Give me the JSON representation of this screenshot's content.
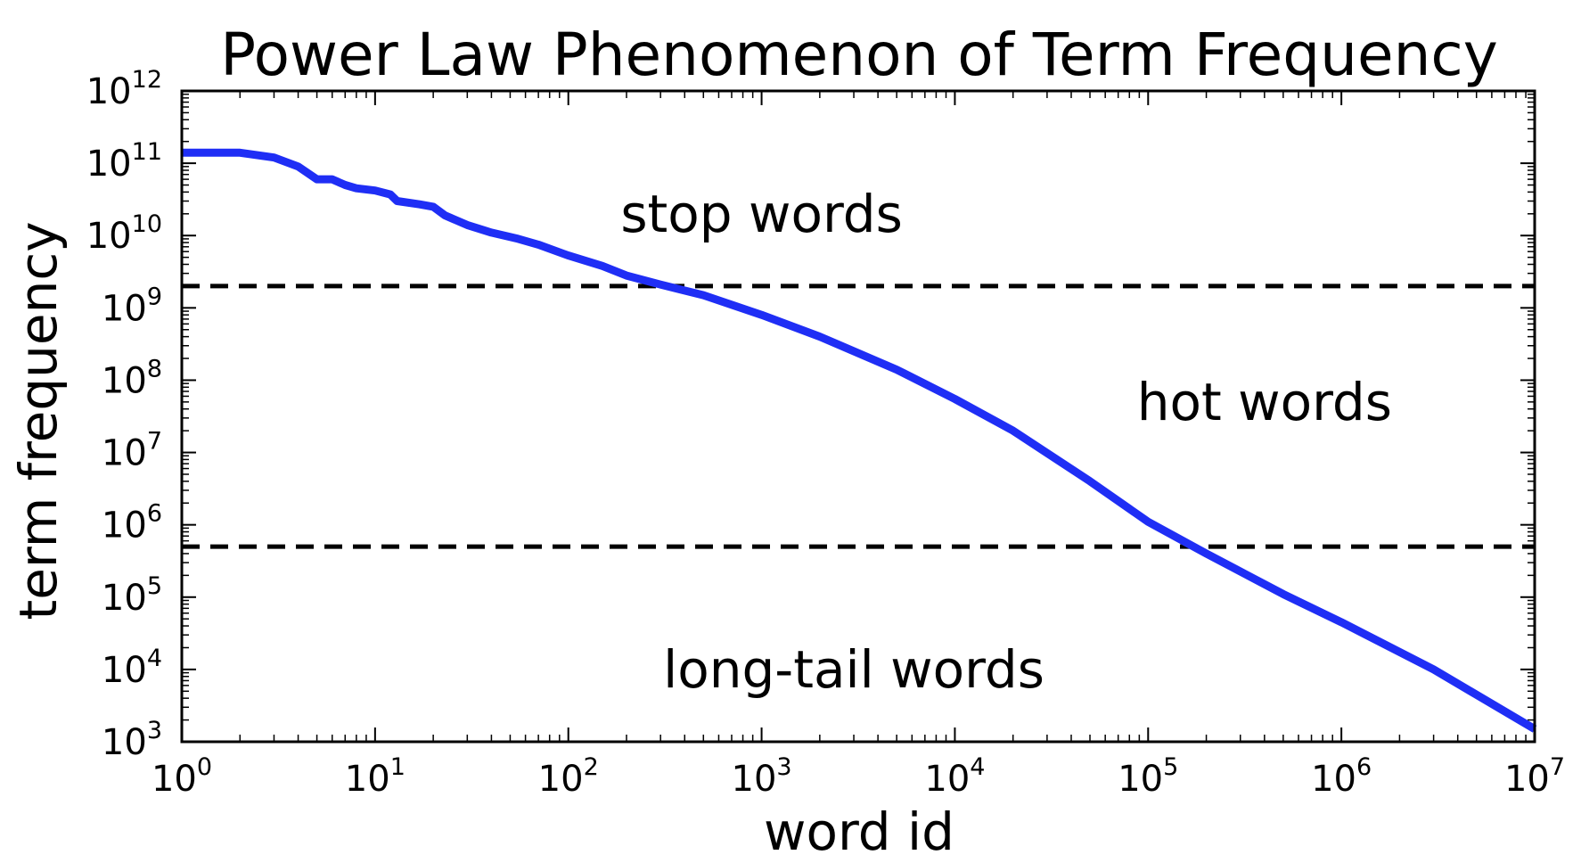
{
  "chart_data": {
    "type": "line",
    "title": "Power Law Phenomenon of Term Frequency",
    "xlabel": "word id",
    "ylabel": "term frequency",
    "xscale": "log",
    "yscale": "log",
    "xlim": [
      1,
      10000000
    ],
    "ylim": [
      1000,
      1000000000000
    ],
    "grid": false,
    "x_ticks": [
      {
        "base": "10",
        "exp": "0"
      },
      {
        "base": "10",
        "exp": "1"
      },
      {
        "base": "10",
        "exp": "2"
      },
      {
        "base": "10",
        "exp": "3"
      },
      {
        "base": "10",
        "exp": "4"
      },
      {
        "base": "10",
        "exp": "5"
      },
      {
        "base": "10",
        "exp": "6"
      },
      {
        "base": "10",
        "exp": "7"
      }
    ],
    "y_ticks": [
      {
        "base": "10",
        "exp": "3"
      },
      {
        "base": "10",
        "exp": "4"
      },
      {
        "base": "10",
        "exp": "5"
      },
      {
        "base": "10",
        "exp": "6"
      },
      {
        "base": "10",
        "exp": "7"
      },
      {
        "base": "10",
        "exp": "8"
      },
      {
        "base": "10",
        "exp": "9"
      },
      {
        "base": "10",
        "exp": "10"
      },
      {
        "base": "10",
        "exp": "11"
      },
      {
        "base": "10",
        "exp": "12"
      }
    ],
    "series": [
      {
        "color": "#1f2ef5",
        "points": [
          [
            1,
            140000000000
          ],
          [
            2,
            140000000000
          ],
          [
            3,
            120000000000
          ],
          [
            4,
            90000000000
          ],
          [
            5,
            60000000000
          ],
          [
            6,
            60000000000
          ],
          [
            7,
            50000000000
          ],
          [
            8,
            45000000000
          ],
          [
            10,
            42000000000
          ],
          [
            12,
            37000000000
          ],
          [
            13,
            30000000000
          ],
          [
            17,
            27000000000
          ],
          [
            20,
            25000000000
          ],
          [
            23,
            19000000000
          ],
          [
            30,
            14000000000
          ],
          [
            40,
            11000000000
          ],
          [
            55,
            9000000000
          ],
          [
            70,
            7500000000
          ],
          [
            100,
            5300000000
          ],
          [
            150,
            3800000000
          ],
          [
            200,
            2800000000
          ],
          [
            300,
            2100000000
          ],
          [
            500,
            1500000000
          ],
          [
            1000,
            800000000
          ],
          [
            2000,
            400000000
          ],
          [
            5000,
            140000000
          ],
          [
            10000,
            55000000
          ],
          [
            20000,
            20000000
          ],
          [
            50000,
            4000000
          ],
          [
            100000,
            1100000
          ],
          [
            200000,
            400000
          ],
          [
            500000,
            110000
          ],
          [
            1000000,
            45000
          ],
          [
            3000000,
            10000
          ],
          [
            10000000,
            1500
          ]
        ]
      }
    ],
    "reference_lines": [
      {
        "y": 2000000000,
        "style": "dashed",
        "color": "#000000"
      },
      {
        "y": 500000,
        "style": "dashed",
        "color": "#000000"
      }
    ],
    "annotations": [
      {
        "text": "stop words",
        "x": 1000,
        "y": 20000000000
      },
      {
        "text": "hot words",
        "x": 400000,
        "y": 50000000
      },
      {
        "text": "long-tail words",
        "x": 3000,
        "y": 10000
      }
    ]
  }
}
